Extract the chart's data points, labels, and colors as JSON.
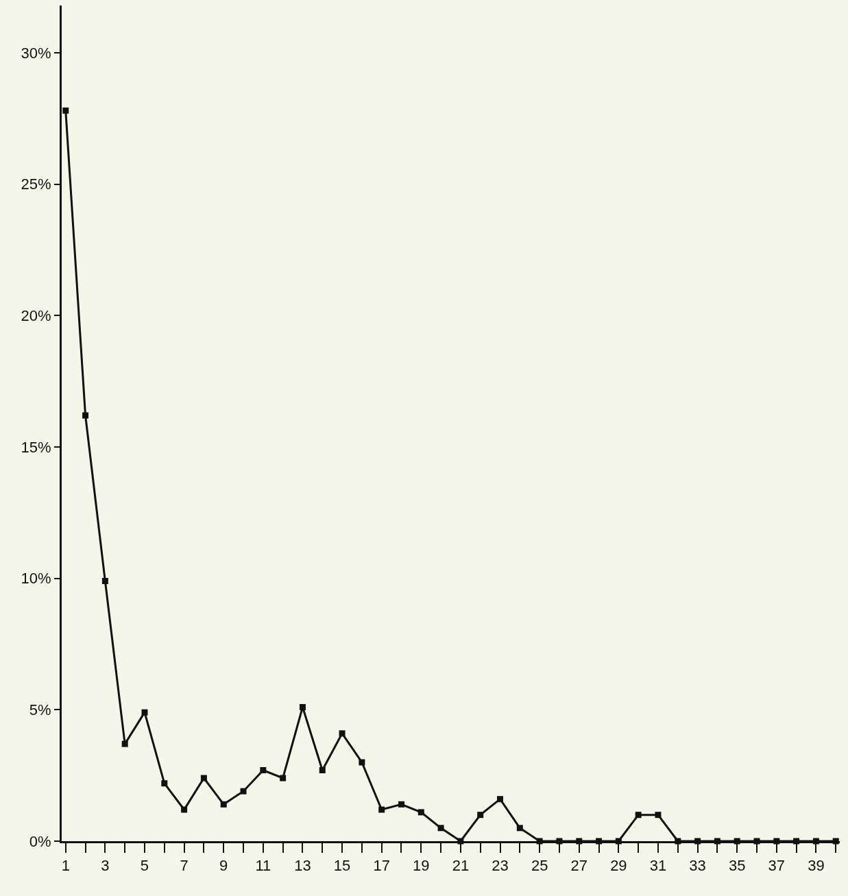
{
  "chart_data": {
    "type": "line",
    "marker": "square",
    "line_style": "solid",
    "grid": false,
    "x": [
      1,
      2,
      3,
      4,
      5,
      6,
      7,
      8,
      9,
      10,
      11,
      12,
      13,
      14,
      15,
      16,
      17,
      18,
      19,
      20,
      21,
      22,
      23,
      24,
      25,
      26,
      27,
      28,
      29,
      30,
      31,
      32,
      33,
      34,
      35,
      36,
      37,
      38,
      39,
      40
    ],
    "series": [
      {
        "color": "#111111",
        "values": [
          27.8,
          16.2,
          9.9,
          3.7,
          4.9,
          2.2,
          1.2,
          2.4,
          1.4,
          1.9,
          2.7,
          2.4,
          5.1,
          2.7,
          4.1,
          3.0,
          1.2,
          1.4,
          1.1,
          0.5,
          0,
          1.0,
          1.6,
          0.5,
          0,
          0,
          0,
          0,
          0,
          1.0,
          1.0,
          0,
          0,
          0,
          0,
          0,
          0,
          0,
          0,
          0
        ]
      }
    ],
    "xlim": [
      0.8,
      40.2
    ],
    "xticks": [
      1,
      {
        "value": 2,
        "label": null
      },
      3,
      {
        "value": 4,
        "label": null
      },
      5,
      {
        "value": 6,
        "label": null
      },
      7,
      {
        "value": 8,
        "label": null
      },
      9,
      {
        "value": 10,
        "label": null
      },
      11,
      {
        "value": 12,
        "label": null
      },
      13,
      {
        "value": 14,
        "label": null
      },
      15,
      {
        "value": 16,
        "label": null
      },
      17,
      {
        "value": 18,
        "label": null
      },
      19,
      {
        "value": 20,
        "label": null
      },
      21,
      {
        "value": 22,
        "label": null
      },
      23,
      {
        "value": 24,
        "label": null
      },
      25,
      {
        "value": 26,
        "label": null
      },
      27,
      {
        "value": 28,
        "label": null
      },
      29,
      {
        "value": 30,
        "label": null
      },
      31,
      {
        "value": 32,
        "label": null
      },
      33,
      {
        "value": 34,
        "label": null
      },
      35,
      {
        "value": 36,
        "label": null
      },
      37,
      {
        "value": 38,
        "label": null
      },
      39,
      {
        "value": 40,
        "label": null
      }
    ],
    "ylim": [
      0,
      31.8
    ],
    "yticks": [
      {
        "value": 0,
        "label": "0%"
      },
      {
        "value": 5,
        "label": "5%"
      },
      {
        "value": 10,
        "label": "10%"
      },
      {
        "value": 15,
        "label": "15%"
      },
      {
        "value": 20,
        "label": "20%"
      },
      {
        "value": 25,
        "label": "25%"
      },
      {
        "value": 30,
        "label": "30%"
      }
    ]
  }
}
